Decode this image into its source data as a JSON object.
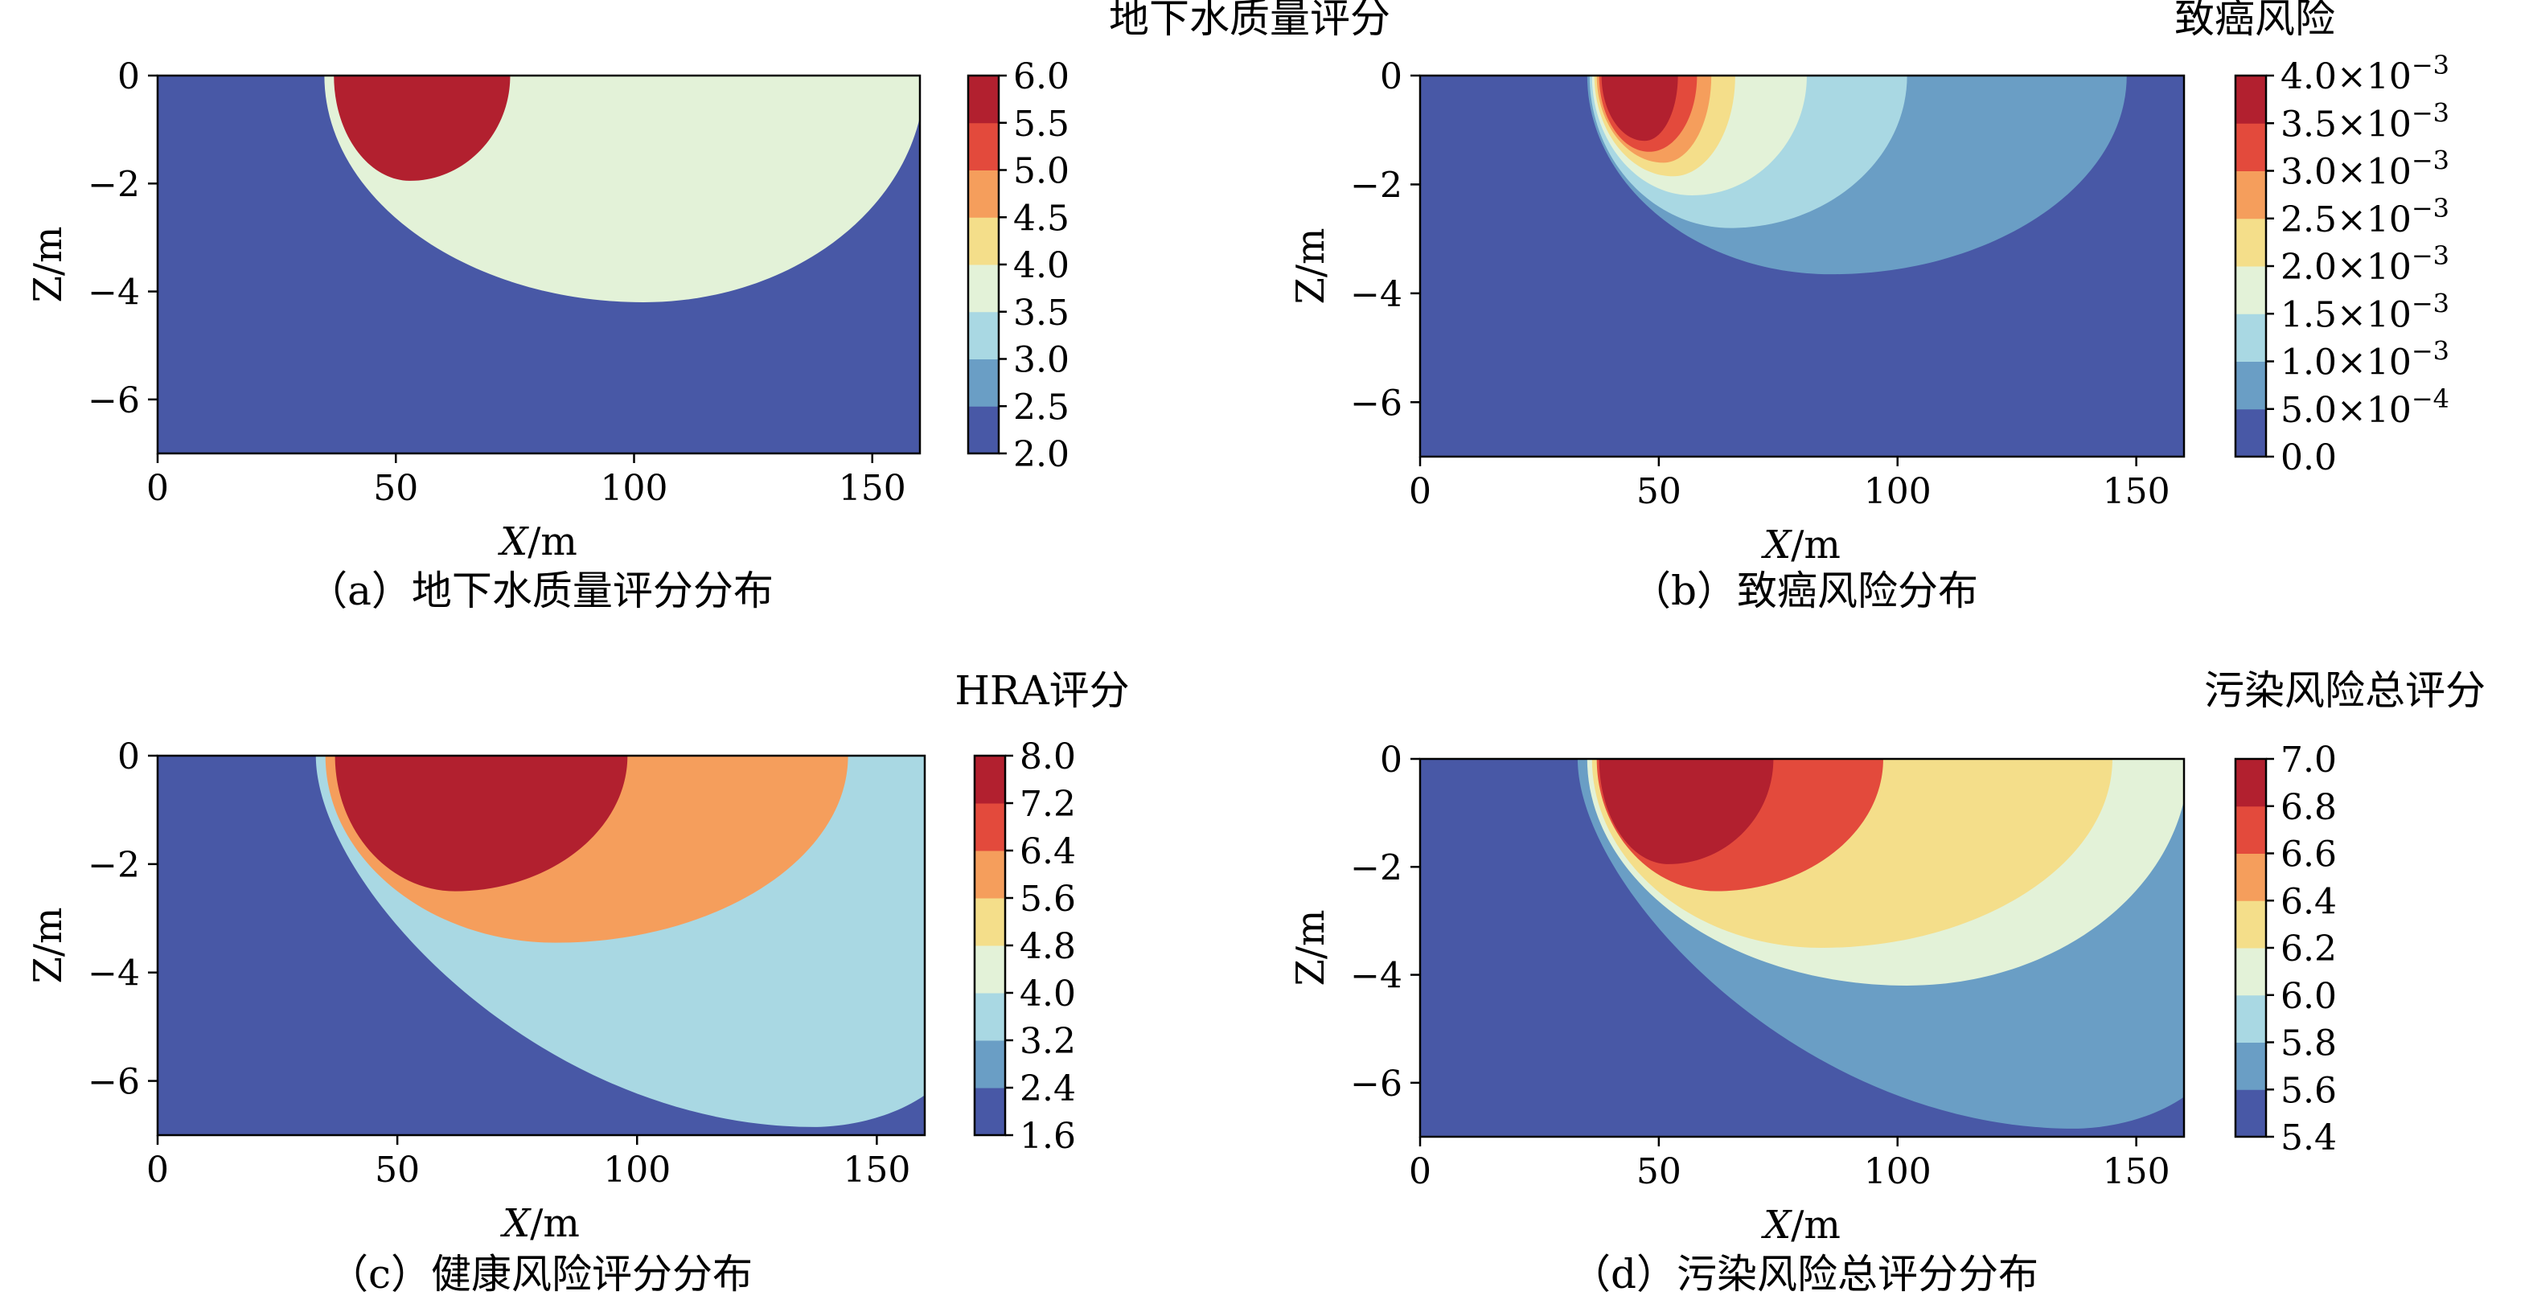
{
  "charts": [
    {
      "type": "filled-contour",
      "caption": "（a）地下水质量评分分布",
      "colorbar_title": "地下水质量评分",
      "xlabel": "X/m",
      "ylabel": "Z/m",
      "xlim": [
        0,
        160
      ],
      "ylim": [
        -7,
        0
      ],
      "x_ticks": [
        0,
        50,
        100,
        150
      ],
      "y_ticks": [
        0,
        -2,
        -4,
        -6
      ],
      "x_tick_labels": [
        "0",
        "50",
        "100",
        "150"
      ],
      "y_tick_labels": [
        "0",
        "−2",
        "−4",
        "−6"
      ],
      "background_color": "#4858a6",
      "levels": [
        2.0,
        2.5,
        3.0,
        3.5,
        4.0,
        4.5,
        5.0,
        5.5,
        6.0
      ],
      "level_labels": [
        "2.0",
        "2.5",
        "3.0",
        "3.5",
        "4.0",
        "4.5",
        "5.0",
        "5.5",
        "6.0"
      ],
      "colors": [
        "#4858a6",
        "#6a9ec5",
        "#a9d8e3",
        "#e3f2d8",
        "#f4de8a",
        "#f59e5c",
        "#e34a3c",
        "#b2202f"
      ],
      "regions": [
        {
          "value_range": [
            3.5,
            4.0
          ],
          "color": "#e3f2d8",
          "x_left": 35,
          "x_center": 102,
          "x_right": 161,
          "z_bottom": -4.2
        },
        {
          "value_range": [
            5.5,
            6.0
          ],
          "color": "#b2202f",
          "x_left": 37,
          "x_center": 53,
          "x_right": 74,
          "z_bottom": -1.95
        }
      ]
    },
    {
      "type": "filled-contour",
      "caption": "（b）致癌风险分布",
      "colorbar_title": "致癌风险",
      "xlabel": "X/m",
      "ylabel": "Z/m",
      "xlim": [
        0,
        160
      ],
      "ylim": [
        -7,
        0
      ],
      "x_ticks": [
        0,
        50,
        100,
        150
      ],
      "y_ticks": [
        0,
        -2,
        -4,
        -6
      ],
      "x_tick_labels": [
        "0",
        "50",
        "100",
        "150"
      ],
      "y_tick_labels": [
        "0",
        "−2",
        "−4",
        "−6"
      ],
      "background_color": "#4858a6",
      "levels": [
        0.0,
        0.0005,
        0.001,
        0.0015,
        0.002,
        0.0025,
        0.003,
        0.0035,
        0.004
      ],
      "level_labels": [
        {
          "mantissa": "0.0",
          "exponent": ""
        },
        {
          "mantissa": "5.0×10",
          "exponent": "−4"
        },
        {
          "mantissa": "1.0×10",
          "exponent": "−3"
        },
        {
          "mantissa": "1.5×10",
          "exponent": "−3"
        },
        {
          "mantissa": "2.0×10",
          "exponent": "−3"
        },
        {
          "mantissa": "2.5×10",
          "exponent": "−3"
        },
        {
          "mantissa": "3.0×10",
          "exponent": "−3"
        },
        {
          "mantissa": "3.5×10",
          "exponent": "−3"
        },
        {
          "mantissa": "4.0×10",
          "exponent": "−3"
        }
      ],
      "colors": [
        "#4858a6",
        "#6a9ec5",
        "#a9d8e3",
        "#e3f2d8",
        "#f4de8a",
        "#f59e5c",
        "#e34a3c",
        "#b2202f"
      ],
      "regions": [
        {
          "value_range": [
            0.0005,
            0.001
          ],
          "color": "#6a9ec5",
          "x_left": 35,
          "x_center": 86,
          "x_right": 148,
          "z_bottom": -3.65
        },
        {
          "value_range": [
            0.001,
            0.0015
          ],
          "color": "#a9d8e3",
          "x_left": 35.5,
          "x_center": 65,
          "x_right": 102,
          "z_bottom": -2.8
        },
        {
          "value_range": [
            0.0015,
            0.002
          ],
          "color": "#e3f2d8",
          "x_left": 36,
          "x_center": 57,
          "x_right": 81,
          "z_bottom": -2.2
        },
        {
          "value_range": [
            0.002,
            0.0025
          ],
          "color": "#f4de8a",
          "x_left": 36.5,
          "x_center": 53,
          "x_right": 66,
          "z_bottom": -1.85
        },
        {
          "value_range": [
            0.0025,
            0.003
          ],
          "color": "#f59e5c",
          "x_left": 37,
          "x_center": 51,
          "x_right": 61,
          "z_bottom": -1.6
        },
        {
          "value_range": [
            0.003,
            0.0035
          ],
          "color": "#e34a3c",
          "x_left": 37.5,
          "x_center": 48,
          "x_right": 58,
          "z_bottom": -1.4
        },
        {
          "value_range": [
            0.0035,
            0.004
          ],
          "color": "#b2202f",
          "x_left": 38,
          "x_center": 47,
          "x_right": 54,
          "z_bottom": -1.2
        }
      ]
    },
    {
      "type": "filled-contour",
      "caption": "（c）健康风险评分分布",
      "colorbar_title": "HRA评分",
      "xlabel": "X/m",
      "ylabel": "Z/m",
      "xlim": [
        0,
        160
      ],
      "ylim": [
        -7,
        0
      ],
      "x_ticks": [
        0,
        50,
        100,
        150
      ],
      "y_ticks": [
        0,
        -2,
        -4,
        -6
      ],
      "x_tick_labels": [
        "0",
        "50",
        "100",
        "150"
      ],
      "y_tick_labels": [
        "0",
        "−2",
        "−4",
        "−6"
      ],
      "background_color": "#4858a6",
      "levels": [
        1.6,
        2.4,
        3.2,
        4.0,
        4.8,
        5.6,
        6.4,
        7.2,
        8.0
      ],
      "level_labels": [
        "1.6",
        "2.4",
        "3.2",
        "4.0",
        "4.8",
        "5.6",
        "6.4",
        "7.2",
        "8.0"
      ],
      "colors": [
        "#4858a6",
        "#6a9ec5",
        "#a9d8e3",
        "#e3f2d8",
        "#f4de8a",
        "#f59e5c",
        "#e34a3c",
        "#b2202f"
      ],
      "regions": [
        {
          "value_range": [
            3.2,
            4.0
          ],
          "color": "#a9d8e3",
          "x_left": 33,
          "x_center": 137,
          "x_right": 161,
          "z_bottom": -6.85,
          "z_right": -6.2
        },
        {
          "value_range": [
            5.6,
            6.4
          ],
          "color": "#f59e5c",
          "x_left": 35,
          "x_center": 83,
          "x_right": 144,
          "z_bottom": -3.45
        },
        {
          "value_range": [
            7.2,
            8.0
          ],
          "color": "#b2202f",
          "x_left": 37,
          "x_center": 62,
          "x_right": 98,
          "z_bottom": -2.5
        }
      ]
    },
    {
      "type": "filled-contour",
      "caption": "（d）污染风险总评分分布",
      "colorbar_title": "污染风险总评分",
      "xlabel": "X/m",
      "ylabel": "Z/m",
      "xlim": [
        0,
        160
      ],
      "ylim": [
        -7,
        0
      ],
      "x_ticks": [
        0,
        50,
        100,
        150
      ],
      "y_ticks": [
        0,
        -2,
        -4,
        -6
      ],
      "x_tick_labels": [
        "0",
        "50",
        "100",
        "150"
      ],
      "y_tick_labels": [
        "0",
        "−2",
        "−4",
        "−6"
      ],
      "background_color": "#4858a6",
      "levels": [
        5.4,
        5.6,
        5.8,
        6.0,
        6.2,
        6.4,
        6.6,
        6.8,
        7.0
      ],
      "level_labels": [
        "5.4",
        "5.6",
        "5.8",
        "6.0",
        "6.2",
        "6.4",
        "6.6",
        "6.8",
        "7.0"
      ],
      "colors": [
        "#4858a6",
        "#6a9ec5",
        "#a9d8e3",
        "#e3f2d8",
        "#f4de8a",
        "#f59e5c",
        "#e34a3c",
        "#b2202f"
      ],
      "regions": [
        {
          "value_range": [
            5.6,
            5.8
          ],
          "color": "#6a9ec5",
          "x_left": 33,
          "x_center": 137,
          "x_right": 161,
          "z_bottom": -6.85,
          "z_right": -6.2
        },
        {
          "value_range": [
            6.0,
            6.2
          ],
          "color": "#e3f2d8",
          "x_left": 35,
          "x_center": 102,
          "x_right": 161,
          "z_bottom": -4.2
        },
        {
          "value_range": [
            6.2,
            6.4
          ],
          "color": "#f4de8a",
          "x_left": 36,
          "x_center": 84,
          "x_right": 145,
          "z_bottom": -3.5
        },
        {
          "value_range": [
            6.6,
            6.8
          ],
          "color": "#e34a3c",
          "x_left": 37,
          "x_center": 62,
          "x_right": 97,
          "z_bottom": -2.45
        },
        {
          "value_range": [
            6.8,
            7.0
          ],
          "color": "#b2202f",
          "x_left": 37.5,
          "x_center": 52,
          "x_right": 74,
          "z_bottom": -1.95
        }
      ]
    }
  ]
}
